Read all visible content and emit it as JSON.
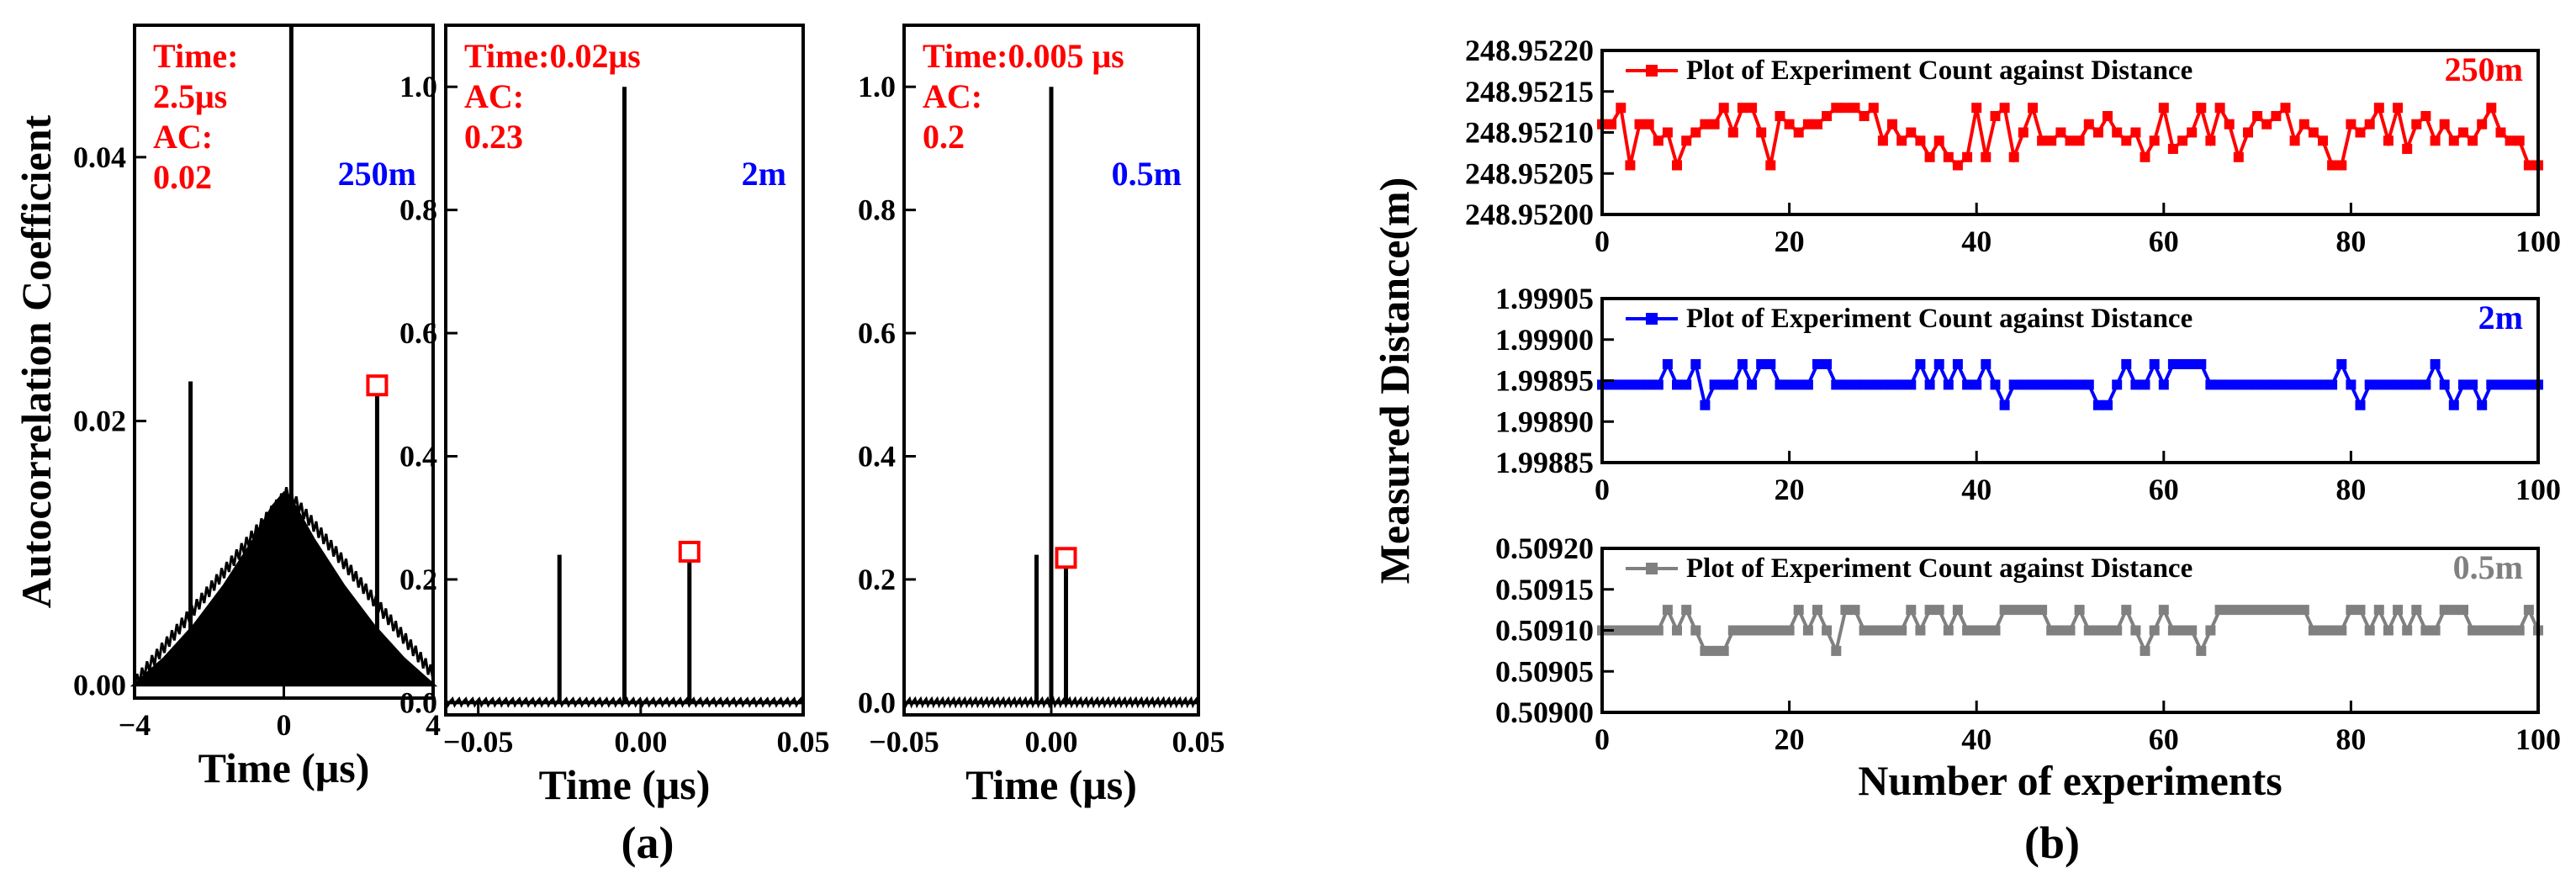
{
  "chart_data": [
    {
      "id": "a1",
      "type": "line",
      "title": "",
      "xlabel": "Time (μs)",
      "ylabel": "Autocorrelation Coefficient",
      "xlim": [
        -4,
        4
      ],
      "ylim": [
        -0.001,
        0.05
      ],
      "xticks": [
        "−4",
        "0",
        "4"
      ],
      "xtick_values": [
        -4,
        0,
        4
      ],
      "yticks": [
        "0.00",
        "0.02",
        "0.04"
      ],
      "ytick_values": [
        0,
        0.02,
        0.04
      ],
      "color": "#000000",
      "noise_floor": {
        "x": [
          -4,
          -3.2,
          -2.4,
          -1.6,
          -0.8,
          -0.3,
          0,
          0.3,
          0.8,
          1.6,
          2.4,
          3.2,
          4
        ],
        "y": [
          0.0,
          0.002,
          0.0045,
          0.0075,
          0.011,
          0.0135,
          0.0145,
          0.0135,
          0.011,
          0.0075,
          0.0045,
          0.002,
          0.0
        ]
      },
      "peaks": [
        {
          "x": -2.5,
          "y": 0.023
        },
        {
          "x": 0.2,
          "y": 0.05
        },
        {
          "x": 2.5,
          "y": 0.022
        }
      ],
      "highlight": {
        "x": 2.5,
        "y": 0.022
      },
      "annotation_red": [
        "Time:",
        "2.5μs",
        "AC:",
        "0.02"
      ],
      "annotation_blue": "250m"
    },
    {
      "id": "a2",
      "type": "line",
      "title": "",
      "xlabel": "Time (μs)",
      "ylabel": "",
      "xlim": [
        -0.06,
        0.05
      ],
      "ylim": [
        -0.02,
        1.1
      ],
      "xticks": [
        "−0.05",
        "0.00",
        "0.05"
      ],
      "xtick_values": [
        -0.05,
        0,
        0.05
      ],
      "yticks": [
        "0.0",
        "0.2",
        "0.4",
        "0.6",
        "0.8",
        "1.0"
      ],
      "ytick_values": [
        0,
        0.2,
        0.4,
        0.6,
        0.8,
        1.0
      ],
      "color": "#000000",
      "noise_floor": {
        "x": [
          -0.06,
          0.05
        ],
        "y": [
          0.0,
          0.0
        ]
      },
      "peaks": [
        {
          "x": -0.025,
          "y": 0.24
        },
        {
          "x": -0.005,
          "y": 1.0
        },
        {
          "x": 0.015,
          "y": 0.23
        }
      ],
      "highlight": {
        "x": 0.015,
        "y": 0.23
      },
      "annotation_red": [
        "Time:0.02μs",
        "AC:",
        "0.23"
      ],
      "annotation_blue": "2m"
    },
    {
      "id": "a3",
      "type": "line",
      "title": "",
      "xlabel": "Time (μs)",
      "ylabel": "",
      "xlim": [
        -0.05,
        0.05
      ],
      "ylim": [
        -0.02,
        1.1
      ],
      "xticks": [
        "−0.05",
        "0.00",
        "0.05"
      ],
      "xtick_values": [
        -0.05,
        0,
        0.05
      ],
      "yticks": [
        "0.0",
        "0.2",
        "0.4",
        "0.6",
        "0.8",
        "1.0"
      ],
      "ytick_values": [
        0,
        0.2,
        0.4,
        0.6,
        0.8,
        1.0
      ],
      "color": "#000000",
      "noise_floor": {
        "x": [
          -0.05,
          0.05
        ],
        "y": [
          0.0,
          0.0
        ]
      },
      "peaks": [
        {
          "x": -0.005,
          "y": 0.24
        },
        {
          "x": 0.0,
          "y": 1.0
        },
        {
          "x": 0.005,
          "y": 0.22
        }
      ],
      "highlight": {
        "x": 0.005,
        "y": 0.22
      },
      "annotation_red": [
        "Time:0.005 μs",
        "AC:",
        "0.2"
      ],
      "annotation_blue": "0.5m"
    },
    {
      "id": "b1",
      "type": "line",
      "title": "",
      "xlabel": "",
      "ylabel": "",
      "xlim": [
        0,
        100
      ],
      "ylim": [
        248.952,
        248.9522
      ],
      "xticks": [
        "0",
        "20",
        "40",
        "60",
        "80",
        "100"
      ],
      "xtick_values": [
        0,
        20,
        40,
        60,
        80,
        100
      ],
      "yticks": [
        "248.95200",
        "248.95205",
        "248.95210",
        "248.95215",
        "248.95220"
      ],
      "ytick_values": [
        248.952,
        248.95205,
        248.9521,
        248.95215,
        248.9522
      ],
      "color": "#ff0000",
      "legend": "Plot  of  Experiment Count against Distance",
      "label": "250m",
      "base": 248.952,
      "step": 1e-05,
      "levels": [
        11,
        11,
        13,
        6,
        11,
        11,
        9,
        10,
        6,
        9,
        10,
        11,
        11,
        13,
        10,
        13,
        13,
        10,
        6,
        12,
        11,
        10,
        11,
        11,
        12,
        13,
        13,
        13,
        12,
        13,
        9,
        11,
        9,
        10,
        9,
        7,
        9,
        7,
        6,
        7,
        13,
        7,
        12,
        13,
        7,
        10,
        13,
        9,
        9,
        10,
        9,
        9,
        11,
        10,
        12,
        10,
        9,
        10,
        7,
        9,
        13,
        8,
        9,
        10,
        13,
        9,
        13,
        11,
        7,
        10,
        12,
        11,
        12,
        13,
        9,
        11,
        10,
        9,
        6,
        6,
        11,
        10,
        11,
        13,
        9,
        13,
        8,
        11,
        12,
        9,
        11,
        9,
        10,
        9,
        11,
        13,
        10,
        9,
        9,
        6,
        6
      ],
      "label_color": "#ff0000"
    },
    {
      "id": "b2",
      "type": "line",
      "title": "",
      "xlabel": "",
      "ylabel": "Measured Distance(m)",
      "xlim": [
        0,
        100
      ],
      "ylim": [
        1.99885,
        1.99905
      ],
      "xticks": [
        "0",
        "20",
        "40",
        "60",
        "80",
        "100"
      ],
      "xtick_values": [
        0,
        20,
        40,
        60,
        80,
        100
      ],
      "yticks": [
        "1.99885",
        "1.99890",
        "1.99895",
        "1.99900",
        "1.99905"
      ],
      "ytick_values": [
        1.99885,
        1.9989,
        1.99895,
        1.999,
        1.99905
      ],
      "color": "#0000ff",
      "legend": "Plot  of  Experiment Count against Distance",
      "label": "2m",
      "base": 1.99885,
      "step": 1e-05,
      "levels": [
        9.5,
        9.5,
        9.5,
        9.5,
        9.5,
        9.5,
        9.5,
        12,
        9.5,
        9.5,
        12,
        7,
        9.5,
        9.5,
        9.5,
        12,
        9.5,
        12,
        12,
        9.5,
        9.5,
        9.5,
        9.5,
        12,
        12,
        9.5,
        9.5,
        9.5,
        9.5,
        9.5,
        9.5,
        9.5,
        9.5,
        9.5,
        12,
        9.5,
        12,
        9.5,
        12,
        9.5,
        9.5,
        12,
        9.5,
        7,
        9.5,
        9.5,
        9.5,
        9.5,
        9.5,
        9.5,
        9.5,
        9.5,
        9.5,
        7,
        7,
        9.5,
        12,
        9.5,
        9.5,
        12,
        9.5,
        12,
        12,
        12,
        12,
        9.5,
        9.5,
        9.5,
        9.5,
        9.5,
        9.5,
        9.5,
        9.5,
        9.5,
        9.5,
        9.5,
        9.5,
        9.5,
        9.5,
        12,
        9.5,
        7,
        9.5,
        9.5,
        9.5,
        9.5,
        9.5,
        9.5,
        9.5,
        12,
        9.5,
        7,
        9.5,
        9.5,
        7,
        9.5,
        9.5,
        9.5,
        9.5,
        9.5,
        9.5
      ],
      "label_color": "#0000ff"
    },
    {
      "id": "b3",
      "type": "line",
      "title": "",
      "xlabel": "Number of experiments",
      "ylabel": "",
      "xlim": [
        0,
        100
      ],
      "ylim": [
        0.509,
        0.5092
      ],
      "xticks": [
        "0",
        "20",
        "40",
        "60",
        "80",
        "100"
      ],
      "xtick_values": [
        0,
        20,
        40,
        60,
        80,
        100
      ],
      "yticks": [
        "0.50900",
        "0.50905",
        "0.50910",
        "0.50915",
        "0.50920"
      ],
      "ytick_values": [
        0.509,
        0.50905,
        0.5091,
        0.50915,
        0.5092
      ],
      "color": "#808080",
      "legend": "Plot  of  Experiment Count against Distance",
      "label": "0.5m",
      "base": 0.509,
      "step": 1e-05,
      "levels": [
        10,
        10,
        10,
        10,
        10,
        10,
        10,
        12.5,
        10,
        12.5,
        10,
        7.5,
        7.5,
        7.5,
        10,
        10,
        10,
        10,
        10,
        10,
        10,
        12.5,
        10,
        12.5,
        10,
        7.5,
        12.5,
        12.5,
        10,
        10,
        10,
        10,
        10,
        12.5,
        10,
        12.5,
        12.5,
        10,
        12.5,
        10,
        10,
        10,
        10,
        12.5,
        12.5,
        12.5,
        12.5,
        12.5,
        10,
        10,
        10,
        12.5,
        10,
        10,
        10,
        10,
        12.5,
        10,
        7.5,
        10,
        12.5,
        10,
        10,
        10,
        7.5,
        10,
        12.5,
        12.5,
        12.5,
        12.5,
        12.5,
        12.5,
        12.5,
        12.5,
        12.5,
        12.5,
        10,
        10,
        10,
        10,
        12.5,
        12.5,
        10,
        12.5,
        10,
        12.5,
        10,
        12.5,
        10,
        10,
        12.5,
        12.5,
        12.5,
        10,
        10,
        10,
        10,
        10,
        10,
        12.5,
        10
      ],
      "label_color": "#808080"
    }
  ],
  "panel_labels": {
    "a": "(a)",
    "b": "(b)"
  }
}
